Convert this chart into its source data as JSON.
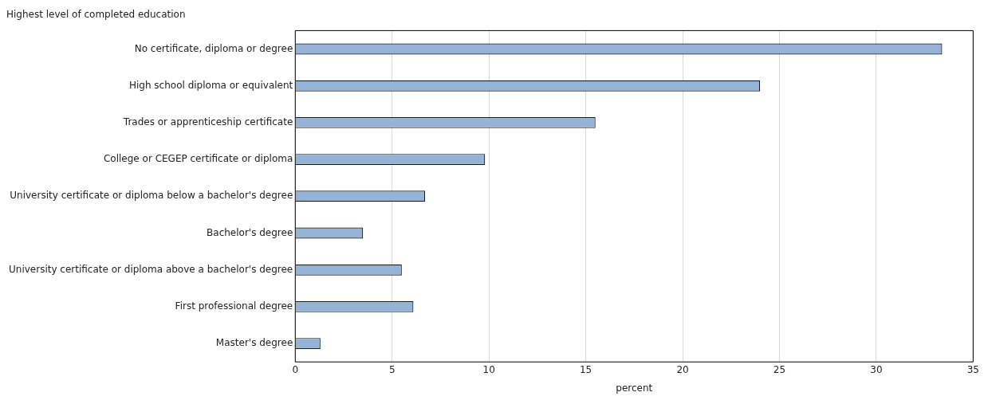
{
  "chart_data": {
    "type": "bar",
    "orientation": "horizontal",
    "ylabel": "Highest level of completed education",
    "xlabel": "percent",
    "categories": [
      "No certificate, diploma or degree",
      "High school diploma or equivalent",
      "Trades or apprenticeship certificate",
      "College or CEGEP certificate or diploma",
      "University certificate or diploma below a bachelor's degree",
      "Bachelor's degree",
      "University certificate or diploma above a bachelor's degree",
      "First professional degree",
      "Master's degree"
    ],
    "values": [
      33.4,
      24.0,
      15.5,
      9.8,
      6.7,
      3.5,
      5.5,
      6.1,
      1.3
    ],
    "color": "#95b3d7",
    "xlim": [
      0,
      35
    ],
    "xticks": [
      0,
      5,
      10,
      15,
      20,
      25,
      30,
      35
    ],
    "grid": "x",
    "legend": false
  }
}
